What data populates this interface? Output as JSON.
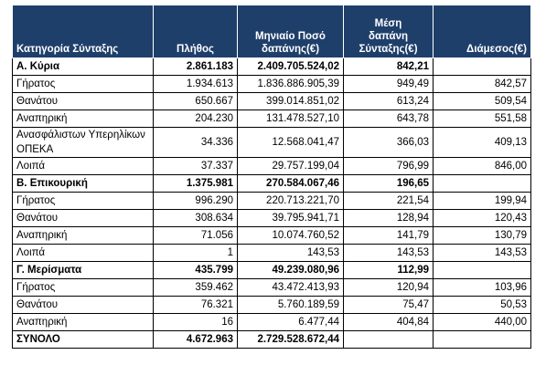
{
  "table": {
    "header": [
      "Κατηγορία Σύνταξης",
      "Πλήθος",
      "Μηνιαίο Ποσό δαπάνης(€)",
      "Μέση δαπάνη Σύνταξης(€)",
      "Διάμεσος(€)"
    ],
    "rows": [
      {
        "bold": true,
        "cells": [
          "Α. Κύρια",
          "2.861.183",
          "2.409.705.524,02",
          "842,21"
        ]
      },
      {
        "cells": [
          "Γήρατος",
          "1.934.613",
          "1.836.886.905,39",
          "949,49",
          "842,57"
        ]
      },
      {
        "cells": [
          "Θανάτου",
          "650.667",
          "399.014.851,02",
          "613,24",
          "509,54"
        ]
      },
      {
        "cells": [
          "Αναπηρική",
          "204.230",
          "131.478.527,10",
          "643,78",
          "551,58"
        ]
      },
      {
        "cells": [
          "Ανασφάλιστων Υπερηλίκων ΟΠΕΚΑ",
          "34.336",
          "12.568.041,47",
          "366,03",
          "409,13"
        ]
      },
      {
        "cells": [
          "Λοιπά",
          "37.337",
          "29.757.199,04",
          "796,99",
          "846,00"
        ]
      },
      {
        "bold": true,
        "cells": [
          "Β. Επικουρική",
          "1.375.981",
          "270.584.067,46",
          "196,65"
        ]
      },
      {
        "cells": [
          "Γήρατος",
          "996.290",
          "220.713.221,70",
          "221,54",
          "199,94"
        ]
      },
      {
        "cells": [
          "Θανάτου",
          "308.634",
          "39.795.941,71",
          "128,94",
          "120,43"
        ]
      },
      {
        "cells": [
          "Αναπηρική",
          "71.056",
          "10.074.760,52",
          "141,79",
          "130,79"
        ]
      },
      {
        "cells": [
          "Λοιπά",
          "1",
          "143,53",
          "143,53",
          "143,53"
        ]
      },
      {
        "bold": true,
        "cells": [
          "Γ. Μερίσματα",
          "435.799",
          "49.239.080,96",
          "112,99"
        ]
      },
      {
        "cells": [
          "Γήρατος",
          "359.462",
          "43.472.413,93",
          "120,94",
          "103,96"
        ]
      },
      {
        "cells": [
          "Θανάτου",
          "76.321",
          "5.760.189,59",
          "75,47",
          "50,53"
        ]
      },
      {
        "cells": [
          "Αναπηρική",
          "16",
          "6.477,44",
          "404,84",
          "440,00"
        ]
      },
      {
        "bold": true,
        "cells": [
          "ΣΥΝΟΛΟ",
          "4.672.963",
          "2.729.528.672,44"
        ]
      }
    ]
  }
}
